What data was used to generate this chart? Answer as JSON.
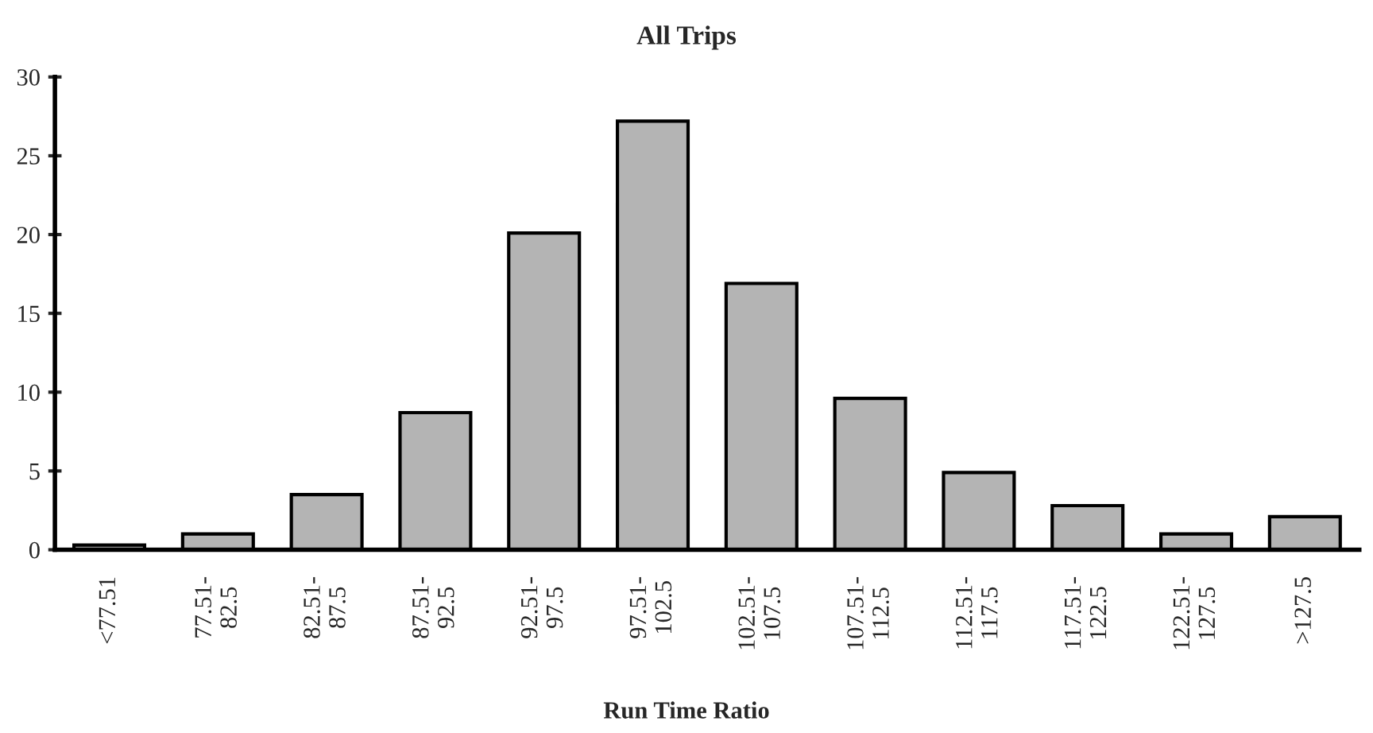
{
  "chart_data": {
    "type": "bar",
    "title": "All Trips",
    "xlabel": "Run Time Ratio",
    "categories": [
      "<77.51",
      "77.51-\n82.5",
      "82.51-\n87.5",
      "87.51-\n92.5",
      "92.51-\n97.5",
      "97.51-\n102.5",
      "102.51-\n107.5",
      "107.51-\n112.5",
      "112.51-\n117.5",
      "117.51-\n122.5",
      "122.51-\n127.5",
      ">127.5"
    ],
    "values": [
      0.3,
      1.0,
      3.5,
      8.7,
      20.1,
      27.2,
      16.9,
      9.6,
      4.9,
      2.8,
      1.0,
      2.1
    ],
    "color": "#b4b4b4",
    "ylim": [
      0,
      30
    ],
    "yticks": [
      0,
      5,
      10,
      15,
      20,
      25,
      30
    ],
    "grid": false,
    "legend": false
  }
}
